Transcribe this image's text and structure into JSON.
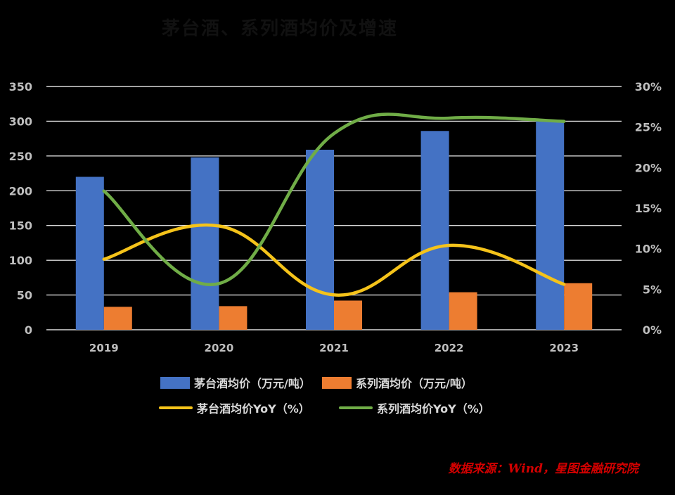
{
  "chart_data": {
    "type": "bar",
    "title": "茅台酒、系列酒均价及增速",
    "categories": [
      "2019",
      "2020",
      "2021",
      "2022",
      "2023"
    ],
    "series": [
      {
        "name": "茅台酒均价（万元/吨）",
        "kind": "bar",
        "axis": "left",
        "color": "#4472c4",
        "values": [
          220,
          248,
          259,
          286,
          300
        ]
      },
      {
        "name": "系列酒均价（万元/吨）",
        "kind": "bar",
        "axis": "left",
        "color": "#ed7d31",
        "values": [
          33,
          34,
          42,
          54,
          67
        ]
      },
      {
        "name": "茅台酒均价YoY（%）",
        "kind": "line",
        "axis": "right",
        "color": "#f5c31a",
        "values": [
          0.087,
          0.128,
          0.043,
          0.104,
          0.056
        ]
      },
      {
        "name": "系列酒均价YoY（%）",
        "kind": "line",
        "axis": "right",
        "color": "#70ad47",
        "values": [
          0.171,
          0.057,
          0.242,
          0.261,
          0.257
        ]
      }
    ],
    "y_left": {
      "min": 0,
      "max": 350,
      "ticks": [
        "0",
        "50",
        "100",
        "150",
        "200",
        "250",
        "300",
        "350"
      ]
    },
    "y_right": {
      "min": 0,
      "max": 0.3,
      "ticks": [
        "0%",
        "5%",
        "10%",
        "15%",
        "20%",
        "25%",
        "30%"
      ]
    },
    "grid": true,
    "legend_position": "bottom"
  },
  "source_text": "数据来源：Wind，星图金融研究院"
}
